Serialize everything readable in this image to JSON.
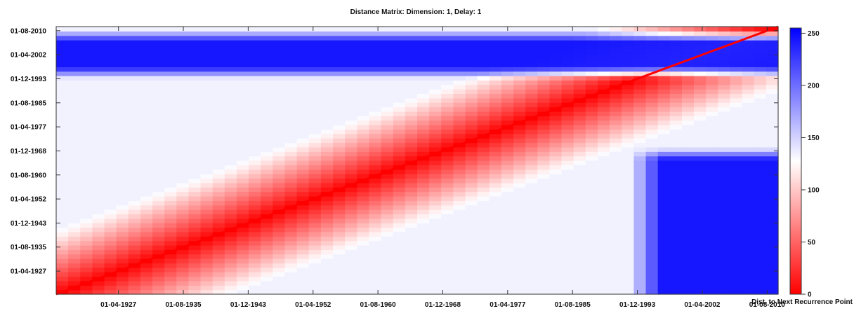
{
  "chart_data": {
    "type": "heatmap",
    "title": "Distance Matrix: Dimension: 1,  Delay: 1",
    "x_tick_labels": [
      "01-04-1927",
      "01-08-1935",
      "01-12-1943",
      "01-04-1952",
      "01-08-1960",
      "01-12-1968",
      "01-04-1977",
      "01-08-1985",
      "01-12-1993",
      "01-04-2002",
      "01-08-2010"
    ],
    "y_tick_labels": [
      "01-04-1927",
      "01-08-1935",
      "01-12-1943",
      "01-04-1952",
      "01-08-1960",
      "01-12-1968",
      "01-04-1977",
      "01-08-1985",
      "01-12-1993",
      "01-04-2002",
      "01-08-2010"
    ],
    "x_range": [
      "1919-04",
      "2012-01"
    ],
    "y_range": [
      "1919-04",
      "2012-01"
    ],
    "diagonal": "red line of zero distance from bottom-left to top-right",
    "high_distance_regions": [
      {
        "x": [
          "1919",
          "2012"
        ],
        "y": [
          "1998",
          "2007"
        ],
        "value": 250
      },
      {
        "x": [
          "1997",
          "2012"
        ],
        "y": [
          "1919",
          "1966"
        ],
        "value": 250
      }
    ],
    "colorbar": {
      "min": 0,
      "max": 255,
      "ticks": [
        0,
        50,
        100,
        150,
        200,
        250
      ],
      "colors": [
        "#ff0000",
        "#ffffff",
        "#0000ff"
      ],
      "label": "Dist. to Next Recurrence Point"
    }
  }
}
